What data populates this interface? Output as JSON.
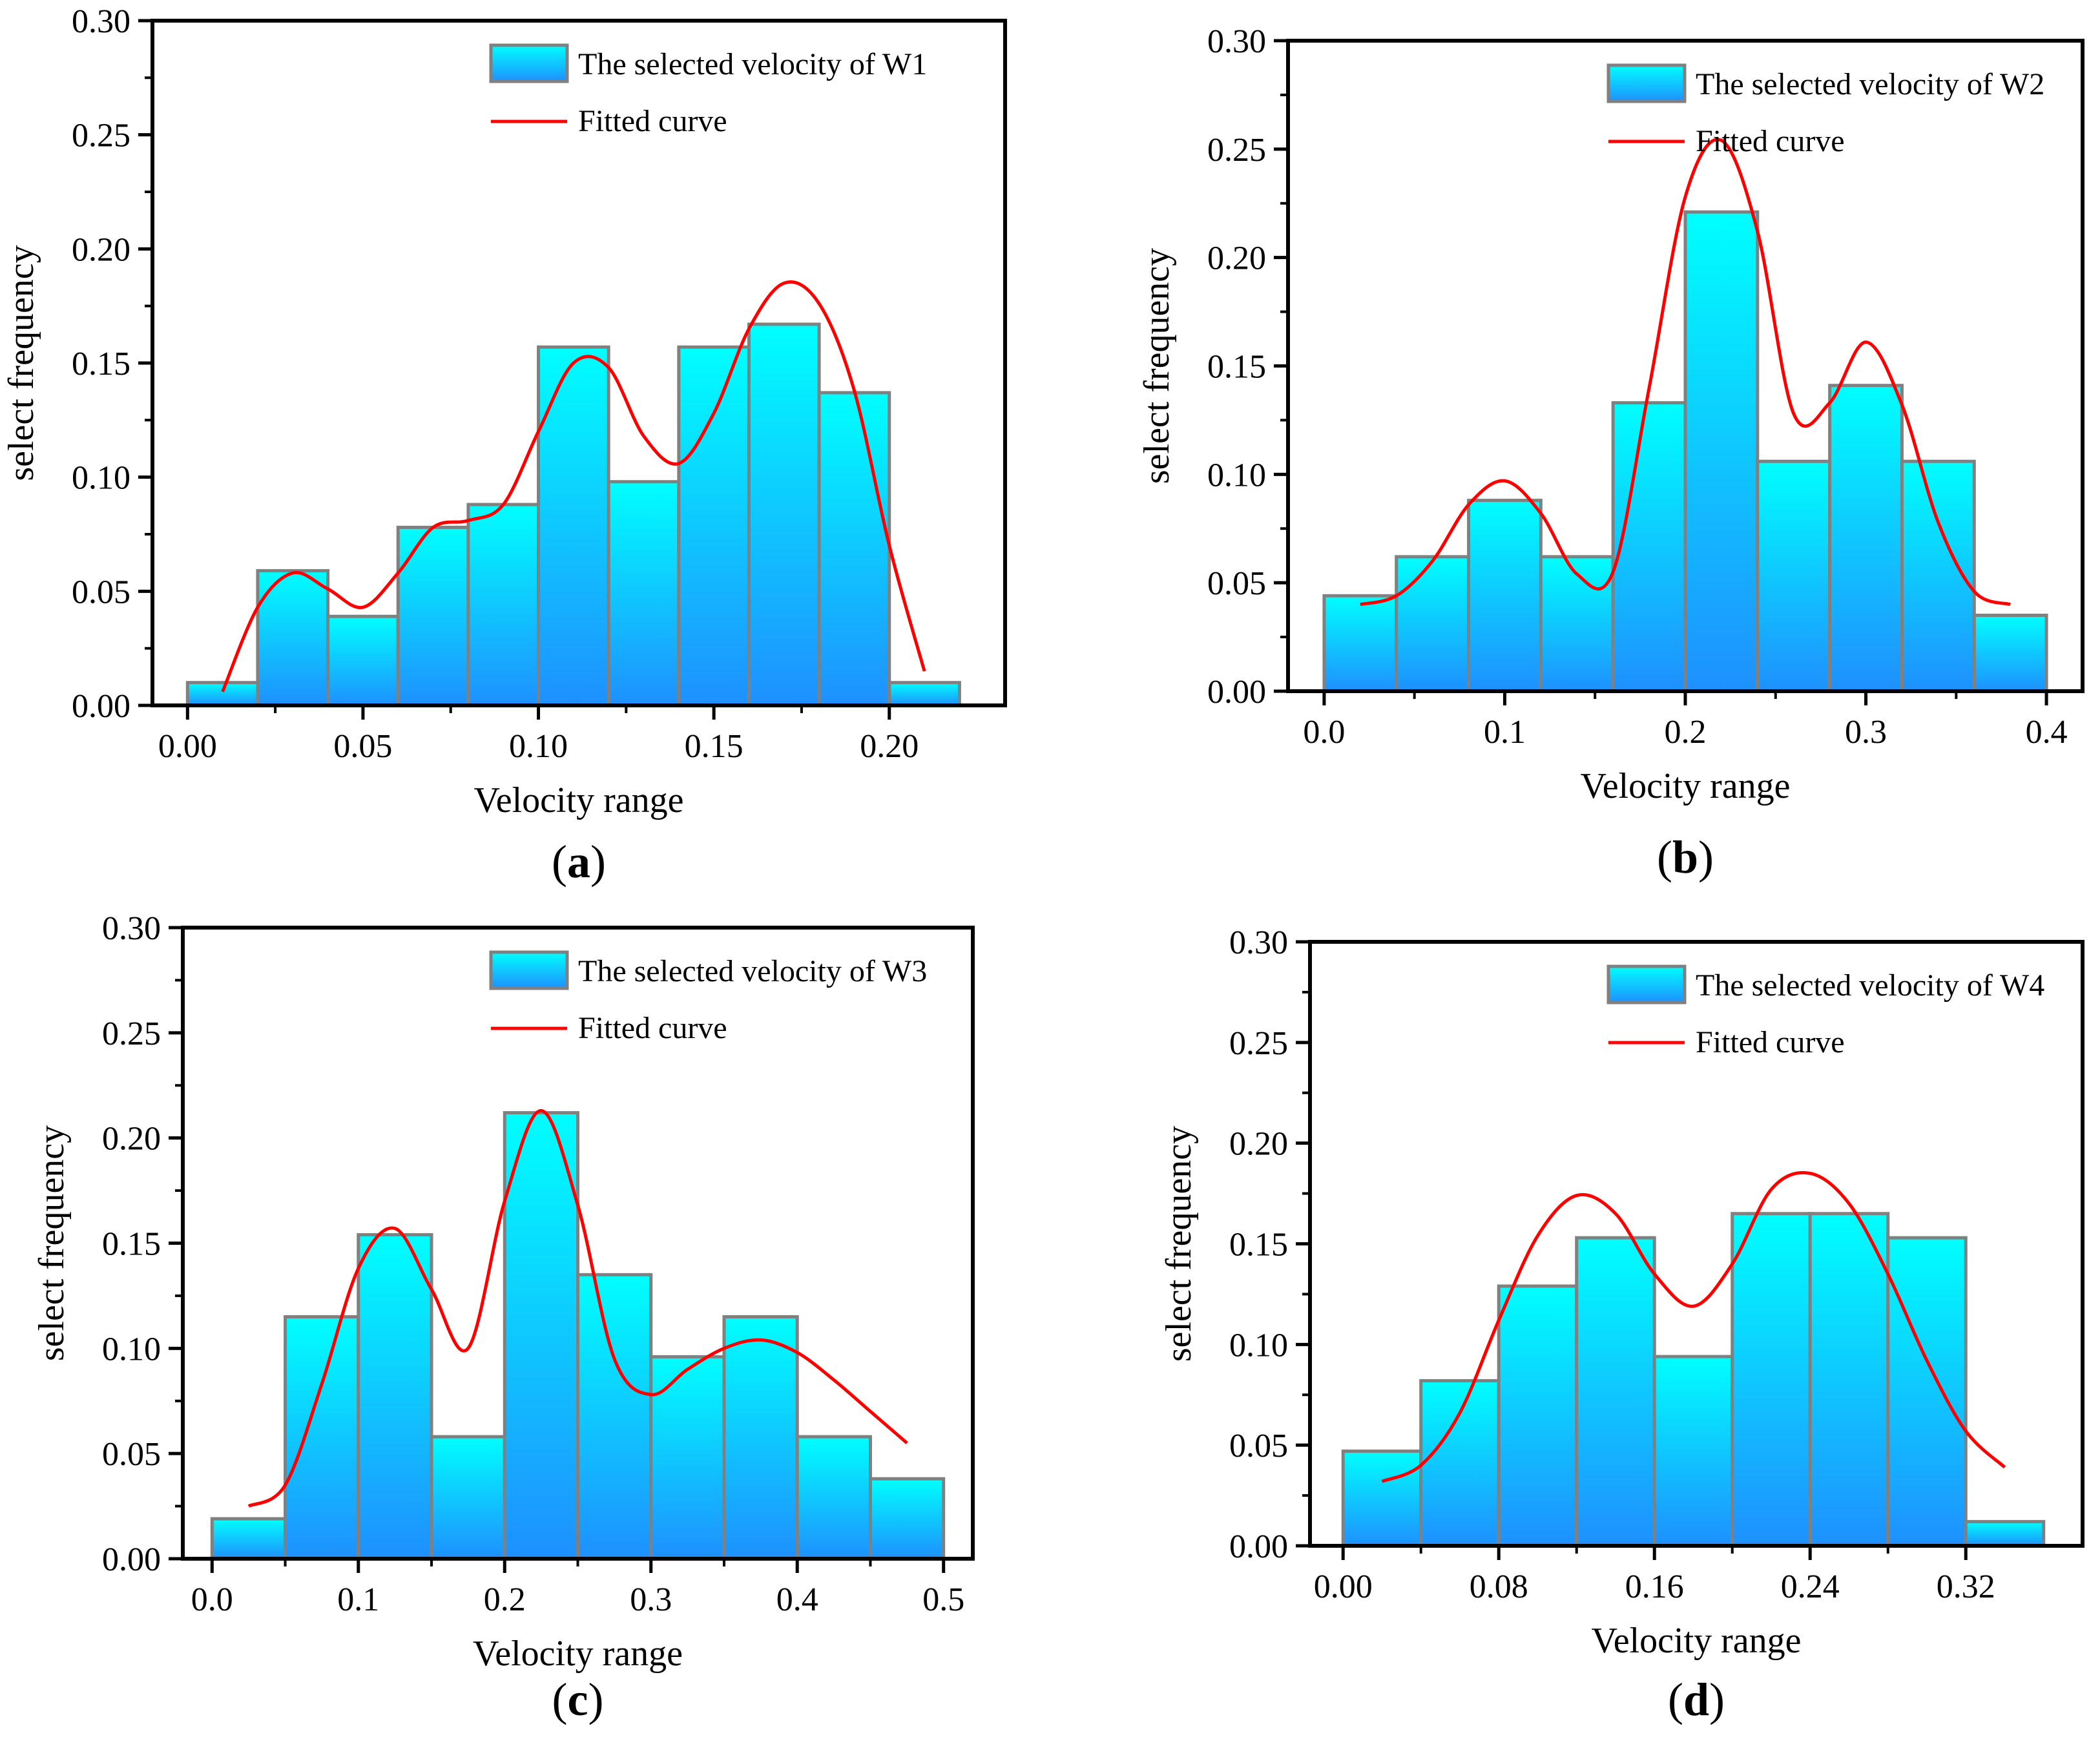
{
  "colors": {
    "bar_top": "#00FFFF",
    "bar_bottom": "#1E90FF",
    "bar_edge": "#808080",
    "fitted_curve": "#FF0000",
    "axis": "#000000"
  },
  "chart_data": [
    {
      "type": "bar",
      "panel_label": "a",
      "xlabel": "Velocity range",
      "ylabel": "select frequency",
      "legend": {
        "bars": "The selected velocity of W1",
        "curve": "Fitted curve",
        "placement": "top-right"
      },
      "ylim": [
        0,
        0.3
      ],
      "yticks": [
        0,
        0.05,
        0.1,
        0.15,
        0.2,
        0.25,
        0.3
      ],
      "ytick_labels": [
        "0.00",
        "0.05",
        "0.10",
        "0.15",
        "0.20",
        "0.25",
        "0.30"
      ],
      "xlim": [
        -0.01,
        0.233
      ],
      "xticks": [
        0,
        0.05,
        0.1,
        0.15,
        0.2
      ],
      "xtick_labels": [
        "0.00",
        "0.05",
        "0.10",
        "0.15",
        "0.20"
      ],
      "bin_width": 0.02,
      "bin_starts": [
        0.0,
        0.02,
        0.04,
        0.06,
        0.08,
        0.1,
        0.12,
        0.14,
        0.16,
        0.18,
        0.2
      ],
      "values": [
        0.01,
        0.059,
        0.039,
        0.078,
        0.088,
        0.157,
        0.098,
        0.157,
        0.167,
        0.137,
        0.01
      ],
      "fitted_curve": {
        "x": [
          0.01,
          0.02,
          0.03,
          0.04,
          0.05,
          0.06,
          0.07,
          0.08,
          0.09,
          0.1,
          0.11,
          0.12,
          0.13,
          0.14,
          0.15,
          0.16,
          0.17,
          0.18,
          0.19,
          0.2,
          0.21
        ],
        "y": [
          0.006,
          0.043,
          0.058,
          0.051,
          0.043,
          0.058,
          0.078,
          0.081,
          0.088,
          0.12,
          0.15,
          0.148,
          0.118,
          0.106,
          0.128,
          0.165,
          0.185,
          0.176,
          0.138,
          0.07,
          0.015
        ]
      },
      "grid": false
    },
    {
      "type": "bar",
      "panel_label": "b",
      "xlabel": "Velocity range",
      "ylabel": "select frequency",
      "legend": {
        "bars": "The selected velocity of W2",
        "curve": "Fitted curve",
        "placement": "top-right"
      },
      "ylim": [
        0,
        0.3
      ],
      "yticks": [
        0,
        0.05,
        0.1,
        0.15,
        0.2,
        0.25,
        0.3
      ],
      "ytick_labels": [
        "0.00",
        "0.05",
        "0.10",
        "0.15",
        "0.20",
        "0.25",
        "0.30"
      ],
      "xlim": [
        -0.02,
        0.42
      ],
      "xticks": [
        0,
        0.1,
        0.2,
        0.3,
        0.4
      ],
      "xtick_labels": [
        "0.0",
        "0.1",
        "0.2",
        "0.3",
        "0.4"
      ],
      "bin_width": 0.04,
      "bin_starts": [
        0.0,
        0.04,
        0.08,
        0.12,
        0.16,
        0.2,
        0.24,
        0.28,
        0.32,
        0.36
      ],
      "values": [
        0.044,
        0.062,
        0.088,
        0.062,
        0.133,
        0.221,
        0.106,
        0.141,
        0.106,
        0.035
      ],
      "fitted_curve": {
        "x": [
          0.02,
          0.04,
          0.06,
          0.08,
          0.1,
          0.12,
          0.14,
          0.16,
          0.18,
          0.2,
          0.22,
          0.24,
          0.26,
          0.28,
          0.3,
          0.32,
          0.34,
          0.36,
          0.38
        ],
        "y": [
          0.04,
          0.044,
          0.06,
          0.086,
          0.097,
          0.082,
          0.054,
          0.055,
          0.14,
          0.228,
          0.254,
          0.212,
          0.128,
          0.133,
          0.161,
          0.132,
          0.078,
          0.046,
          0.04
        ]
      },
      "grid": false
    },
    {
      "type": "bar",
      "panel_label": "c",
      "xlabel": "Velocity range",
      "ylabel": "select frequency",
      "legend": {
        "bars": "The selected velocity of W3",
        "curve": "Fitted curve",
        "placement": "top-right"
      },
      "ylim": [
        0,
        0.3
      ],
      "yticks": [
        0,
        0.05,
        0.1,
        0.15,
        0.2,
        0.25,
        0.3
      ],
      "ytick_labels": [
        "0.00",
        "0.05",
        "0.10",
        "0.15",
        "0.20",
        "0.25",
        "0.30"
      ],
      "xlim": [
        -0.02,
        0.52
      ],
      "xticks": [
        0,
        0.1,
        0.2,
        0.3,
        0.4,
        0.5
      ],
      "xtick_labels": [
        "0.0",
        "0.1",
        "0.2",
        "0.3",
        "0.4",
        "0.5"
      ],
      "bin_width": 0.05,
      "bin_starts": [
        0.0,
        0.05,
        0.1,
        0.15,
        0.2,
        0.25,
        0.3,
        0.35,
        0.4,
        0.45
      ],
      "values": [
        0.019,
        0.115,
        0.154,
        0.058,
        0.212,
        0.135,
        0.096,
        0.115,
        0.058,
        0.038
      ],
      "fitted_curve": {
        "x": [
          0.025,
          0.05,
          0.075,
          0.1,
          0.125,
          0.15,
          0.175,
          0.2,
          0.225,
          0.25,
          0.275,
          0.3,
          0.325,
          0.35,
          0.375,
          0.4,
          0.425,
          0.45,
          0.475
        ],
        "y": [
          0.025,
          0.035,
          0.083,
          0.138,
          0.157,
          0.128,
          0.1,
          0.17,
          0.213,
          0.168,
          0.095,
          0.078,
          0.09,
          0.1,
          0.104,
          0.098,
          0.085,
          0.07,
          0.055
        ]
      },
      "grid": false
    },
    {
      "type": "bar",
      "panel_label": "d",
      "xlabel": "Velocity range",
      "ylabel": "select frequency",
      "legend": {
        "bars": "The selected velocity of W4",
        "curve": "Fitted curve",
        "placement": "top-right"
      },
      "ylim": [
        0,
        0.3
      ],
      "yticks": [
        0,
        0.05,
        0.1,
        0.15,
        0.2,
        0.25,
        0.3
      ],
      "ytick_labels": [
        "0.00",
        "0.05",
        "0.10",
        "0.15",
        "0.20",
        "0.25",
        "0.30"
      ],
      "xlim": [
        -0.017,
        0.38
      ],
      "xticks": [
        0,
        0.08,
        0.16,
        0.24,
        0.32
      ],
      "xtick_labels": [
        "0.00",
        "0.08",
        "0.16",
        "0.24",
        "0.32"
      ],
      "bin_width": 0.04,
      "bin_starts": [
        0.0,
        0.04,
        0.08,
        0.12,
        0.16,
        0.2,
        0.24,
        0.28,
        0.32
      ],
      "values": [
        0.047,
        0.082,
        0.129,
        0.153,
        0.094,
        0.165,
        0.165,
        0.153,
        0.012
      ],
      "fitted_curve": {
        "x": [
          0.02,
          0.04,
          0.06,
          0.08,
          0.1,
          0.12,
          0.14,
          0.16,
          0.18,
          0.2,
          0.22,
          0.24,
          0.26,
          0.28,
          0.3,
          0.32,
          0.34
        ],
        "y": [
          0.032,
          0.04,
          0.066,
          0.112,
          0.154,
          0.174,
          0.165,
          0.135,
          0.119,
          0.14,
          0.177,
          0.185,
          0.17,
          0.135,
          0.092,
          0.057,
          0.039
        ]
      },
      "grid": false
    }
  ]
}
